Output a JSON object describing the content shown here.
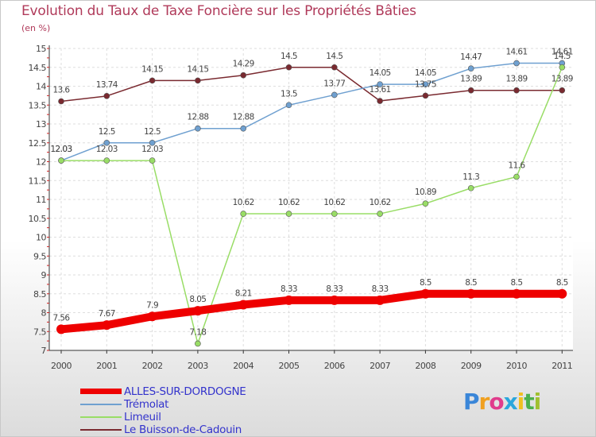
{
  "chart_data": {
    "type": "line",
    "title": "Evolution du Taux de Taxe Foncière sur les Propriétés Bâties",
    "subtitle": "(en %)",
    "x": [
      "2000",
      "2001",
      "2002",
      "2003",
      "2004",
      "2005",
      "2006",
      "2007",
      "2008",
      "2009",
      "2010",
      "2011"
    ],
    "ylim": [
      7,
      15
    ],
    "yticks": [
      "7",
      "7.5",
      "8",
      "8.5",
      "9",
      "9.5",
      "10",
      "10.5",
      "11",
      "11.5",
      "12",
      "12.5",
      "13",
      "13.5",
      "14",
      "14.5",
      "15"
    ],
    "grid": true,
    "series": [
      {
        "name": "ALLES-SUR-DORDOGNE",
        "color": "#ee0000",
        "values": [
          7.56,
          7.67,
          7.9,
          8.05,
          8.21,
          8.33,
          8.33,
          8.33,
          8.5,
          8.5,
          8.5,
          8.5
        ],
        "labels": [
          "7.56",
          "7.67",
          "7.9",
          "8.05",
          "8.21",
          "8.33",
          "8.33",
          "8.33",
          "8.5",
          "8.5",
          "8.5",
          "8.5"
        ]
      },
      {
        "name": "Trémolat",
        "color": "#6fa0d0",
        "values": [
          12.03,
          12.5,
          12.5,
          12.88,
          12.88,
          13.5,
          13.77,
          14.05,
          14.05,
          14.47,
          14.61,
          14.61
        ],
        "labels": [
          "12.03",
          "12.5",
          "12.5",
          "12.88",
          "12.88",
          "13.5",
          "13.77",
          "14.05",
          "14.05",
          "14.47",
          "14.61",
          "14.61"
        ]
      },
      {
        "name": "Limeuil",
        "color": "#99dd66",
        "values": [
          12.03,
          12.03,
          12.03,
          7.18,
          10.62,
          10.62,
          10.62,
          10.62,
          10.89,
          11.3,
          11.6,
          14.5
        ],
        "labels": [
          "12.03",
          "12.03",
          "12.03",
          "7.18",
          "10.62",
          "10.62",
          "10.62",
          "10.62",
          "10.89",
          "11.3",
          "11.6",
          "14.5"
        ]
      },
      {
        "name": "Le Buisson-de-Cadouin",
        "color": "#7a2a30",
        "values": [
          13.6,
          13.74,
          14.15,
          14.15,
          14.29,
          14.5,
          14.5,
          13.61,
          13.75,
          13.89,
          13.89,
          13.89
        ],
        "labels": [
          "13.6",
          "13.74",
          "14.15",
          "14.15",
          "14.29",
          "14.5",
          "14.5",
          "13.61",
          "13.75",
          "13.89",
          "13.89",
          "13.89"
        ]
      }
    ]
  },
  "logo": {
    "letters": [
      "P",
      "r",
      "o",
      "x",
      "i",
      "t",
      "i"
    ],
    "colors": [
      "#3a86d8",
      "#f0a020",
      "#e03c8c",
      "#2aa6dc",
      "#f0c020",
      "#4cb04c",
      "#a0c030"
    ]
  }
}
